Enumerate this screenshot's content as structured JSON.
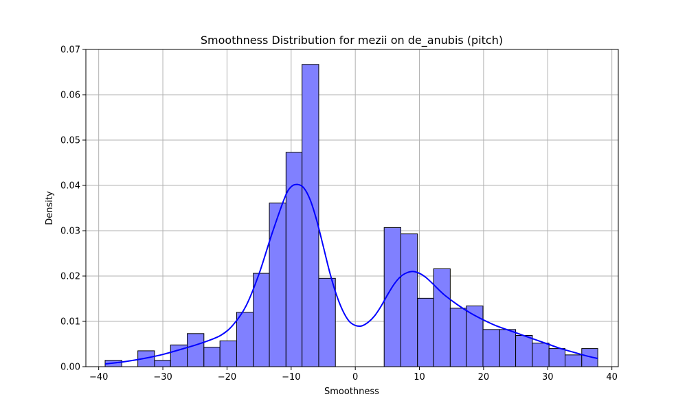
{
  "chart_data": {
    "type": "bar",
    "title": "Smoothness Distribution for mezii on de_anubis (pitch)",
    "xlabel": "Smoothness",
    "ylabel": "Density",
    "xlim": [
      -42,
      41
    ],
    "ylim": [
      0,
      0.07
    ],
    "grid": true,
    "x_ticks": [
      {
        "value": -40,
        "label": "−40"
      },
      {
        "value": -30,
        "label": "−30"
      },
      {
        "value": -20,
        "label": "−20"
      },
      {
        "value": -10,
        "label": "−10"
      },
      {
        "value": 0,
        "label": "0"
      },
      {
        "value": 10,
        "label": "10"
      },
      {
        "value": 20,
        "label": "20"
      },
      {
        "value": 30,
        "label": "30"
      },
      {
        "value": 40,
        "label": "40"
      }
    ],
    "y_ticks": [
      {
        "value": 0,
        "label": "0.00"
      },
      {
        "value": 0.01,
        "label": "0.01"
      },
      {
        "value": 0.02,
        "label": "0.02"
      },
      {
        "value": 0.03,
        "label": "0.03"
      },
      {
        "value": 0.04,
        "label": "0.04"
      },
      {
        "value": 0.05,
        "label": "0.05"
      },
      {
        "value": 0.06,
        "label": "0.06"
      },
      {
        "value": 0.07,
        "label": "0.07"
      }
    ],
    "bars": [
      {
        "x0": -39.0,
        "x1": -36.4,
        "density": 0.0014
      },
      {
        "x0": -36.4,
        "x1": -33.9,
        "density": 0.0
      },
      {
        "x0": -33.9,
        "x1": -31.3,
        "density": 0.0035
      },
      {
        "x0": -31.3,
        "x1": -28.8,
        "density": 0.0014
      },
      {
        "x0": -28.8,
        "x1": -26.2,
        "density": 0.0048
      },
      {
        "x0": -26.2,
        "x1": -23.6,
        "density": 0.0073
      },
      {
        "x0": -23.6,
        "x1": -21.1,
        "density": 0.0043
      },
      {
        "x0": -21.1,
        "x1": -18.5,
        "density": 0.0057
      },
      {
        "x0": -18.5,
        "x1": -15.9,
        "density": 0.012
      },
      {
        "x0": -15.9,
        "x1": -13.4,
        "density": 0.0206
      },
      {
        "x0": -13.4,
        "x1": -10.8,
        "density": 0.0361
      },
      {
        "x0": -10.8,
        "x1": -8.3,
        "density": 0.0473
      },
      {
        "x0": -8.3,
        "x1": -5.7,
        "density": 0.0667
      },
      {
        "x0": -5.7,
        "x1": -3.1,
        "density": 0.0195
      },
      {
        "x0": -3.1,
        "x1": -0.6,
        "density": 0.0
      },
      {
        "x0": -0.6,
        "x1": 2.0,
        "density": 0.0
      },
      {
        "x0": 2.0,
        "x1": 4.5,
        "density": 0.0
      },
      {
        "x0": 4.5,
        "x1": 7.1,
        "density": 0.0307
      },
      {
        "x0": 7.1,
        "x1": 9.7,
        "density": 0.0293
      },
      {
        "x0": 9.7,
        "x1": 12.2,
        "density": 0.0151
      },
      {
        "x0": 12.2,
        "x1": 14.8,
        "density": 0.0216
      },
      {
        "x0": 14.8,
        "x1": 17.3,
        "density": 0.0129
      },
      {
        "x0": 17.3,
        "x1": 19.9,
        "density": 0.0134
      },
      {
        "x0": 19.9,
        "x1": 22.5,
        "density": 0.0082
      },
      {
        "x0": 22.5,
        "x1": 25.0,
        "density": 0.0082
      },
      {
        "x0": 25.0,
        "x1": 27.6,
        "density": 0.0069
      },
      {
        "x0": 27.6,
        "x1": 30.2,
        "density": 0.0052
      },
      {
        "x0": 30.2,
        "x1": 32.7,
        "density": 0.004
      },
      {
        "x0": 32.7,
        "x1": 35.3,
        "density": 0.0026
      },
      {
        "x0": 35.3,
        "x1": 37.8,
        "density": 0.004
      }
    ],
    "kde_curve": {
      "x": [
        -39,
        -36,
        -33,
        -30,
        -27,
        -24,
        -21,
        -19,
        -17,
        -15,
        -13,
        -11,
        -10,
        -9,
        -8,
        -7,
        -6,
        -5,
        -4,
        -3,
        -2,
        -1,
        0,
        1,
        2,
        3,
        4,
        5,
        6,
        7,
        8,
        9,
        10,
        11,
        12,
        13,
        14,
        16,
        18,
        20,
        22,
        24,
        26,
        28,
        30,
        32,
        34,
        36,
        37.8
      ],
      "y": [
        0.0006,
        0.0011,
        0.0018,
        0.0027,
        0.0039,
        0.0052,
        0.0069,
        0.0093,
        0.0135,
        0.0205,
        0.0293,
        0.0373,
        0.0397,
        0.0402,
        0.0394,
        0.0367,
        0.0322,
        0.0266,
        0.0209,
        0.0161,
        0.0125,
        0.0101,
        0.0091,
        0.009,
        0.0098,
        0.0112,
        0.0133,
        0.0158,
        0.0181,
        0.0198,
        0.0207,
        0.021,
        0.0206,
        0.0197,
        0.0184,
        0.017,
        0.0157,
        0.0136,
        0.0118,
        0.0103,
        0.009,
        0.008,
        0.007,
        0.006,
        0.005,
        0.004,
        0.0032,
        0.0024,
        0.0018
      ]
    },
    "colors": {
      "bar_fill": "#8080ff",
      "bar_edge": "#000000",
      "kde_line": "#0000ff",
      "grid": "#b0b0b0",
      "axis": "#000000"
    }
  }
}
